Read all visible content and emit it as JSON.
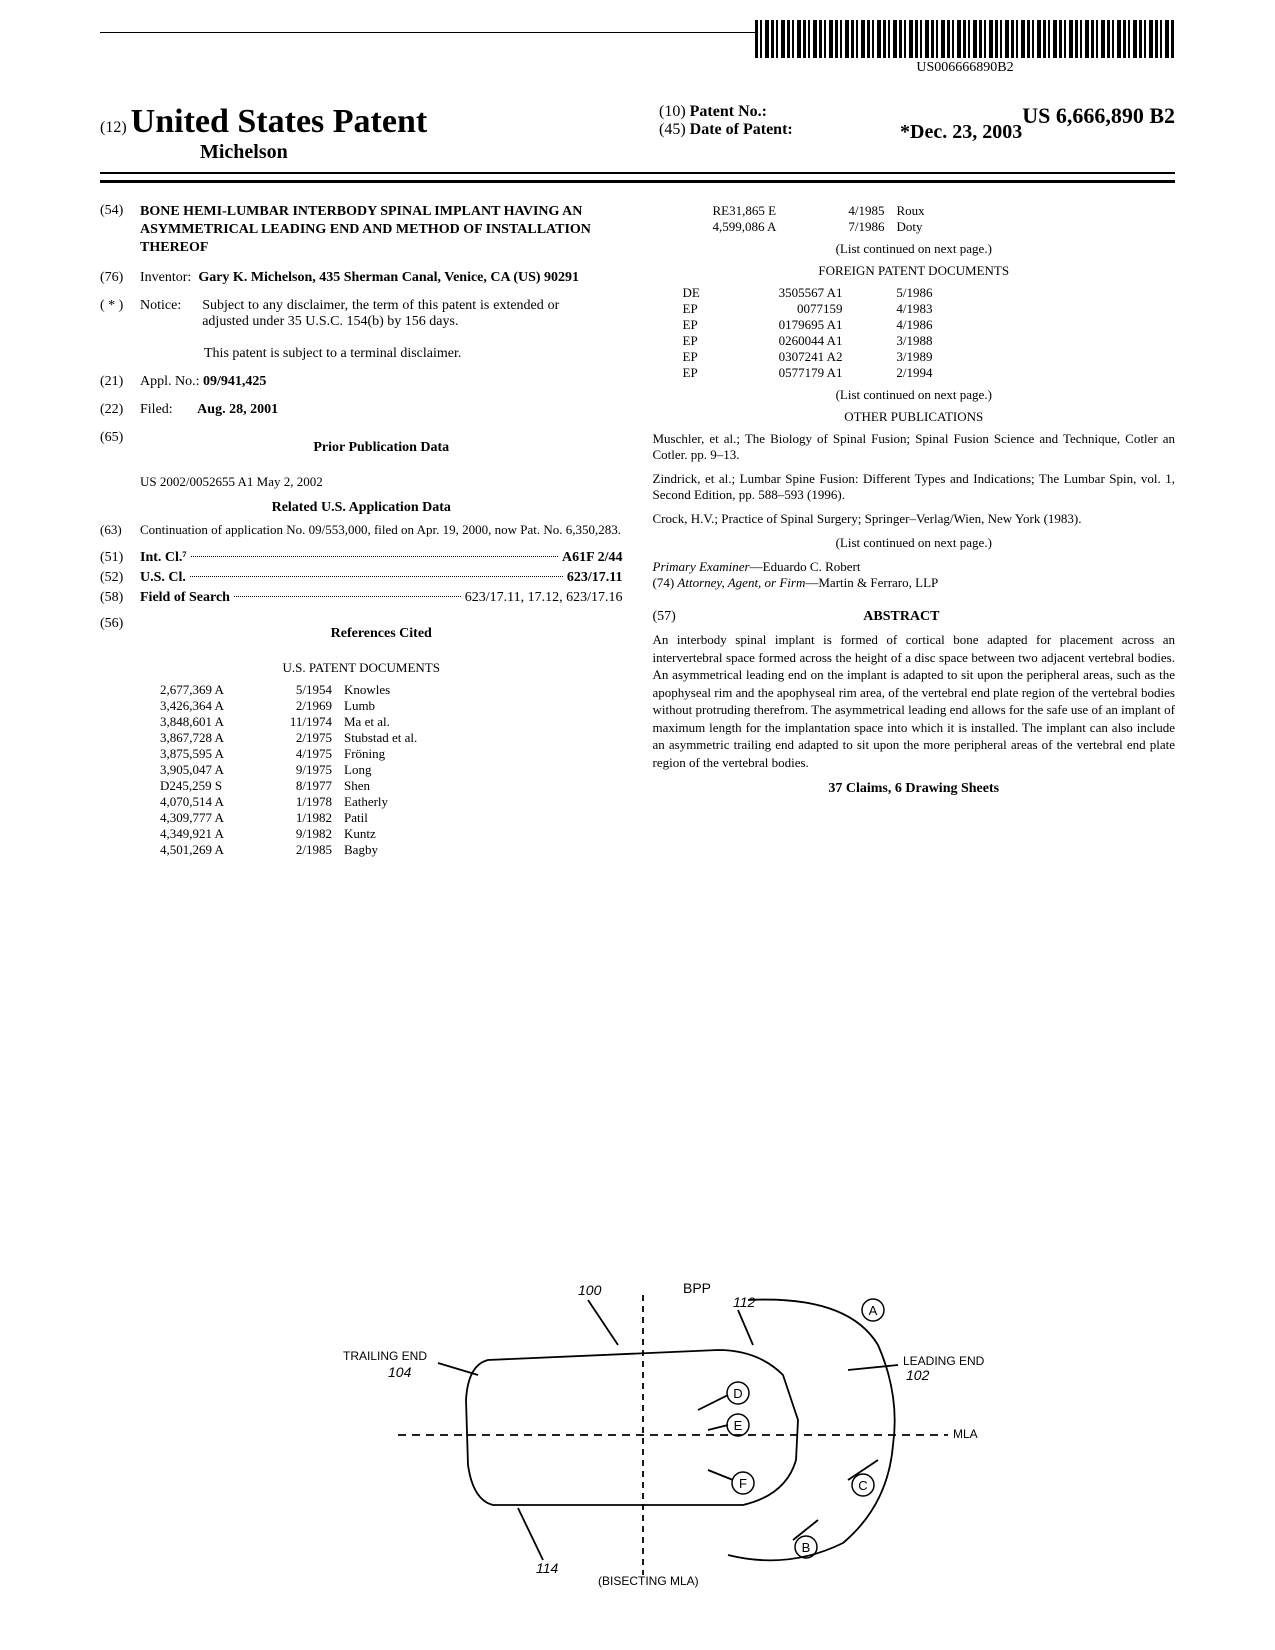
{
  "barcode_text": "US006666890B2",
  "header": {
    "prefix_num": "(12)",
    "title": "United States Patent",
    "inventor_line": "Michelson",
    "patent_no_prefix": "(10)",
    "patent_no_label": "Patent No.:",
    "patent_no": "US 6,666,890 B2",
    "date_prefix": "(45)",
    "date_label": "Date of Patent:",
    "date_value": "*Dec. 23, 2003"
  },
  "left": {
    "s54": {
      "num": "(54)",
      "text": "BONE HEMI-LUMBAR INTERBODY SPINAL IMPLANT HAVING AN ASYMMETRICAL LEADING END AND METHOD OF INSTALLATION THEREOF"
    },
    "s76": {
      "num": "(76)",
      "label": "Inventor:",
      "text": "Gary K. Michelson, 435 Sherman Canal, Venice, CA (US) 90291"
    },
    "notice": {
      "num": "( * )",
      "label": "Notice:",
      "text1": "Subject to any disclaimer, the term of this patent is extended or adjusted under 35 U.S.C. 154(b) by 156 days.",
      "text2": "This patent is subject to a terminal disclaimer."
    },
    "s21": {
      "num": "(21)",
      "label": "Appl. No.:",
      "value": "09/941,425"
    },
    "s22": {
      "num": "(22)",
      "label": "Filed:",
      "value": "Aug. 28, 2001"
    },
    "s65": {
      "num": "(65)",
      "heading": "Prior Publication Data",
      "text": "US 2002/0052655 A1 May 2, 2002"
    },
    "related_heading": "Related U.S. Application Data",
    "s63": {
      "num": "(63)",
      "text": "Continuation of application No. 09/553,000, filed on Apr. 19, 2000, now Pat. No. 6,350,283."
    },
    "s51": {
      "num": "(51)",
      "label": "Int. Cl.⁷",
      "value": "A61F 2/44"
    },
    "s52": {
      "num": "(52)",
      "label": "U.S. Cl.",
      "value": "623/17.11"
    },
    "s58": {
      "num": "(58)",
      "label": "Field of Search",
      "value": "623/17.11, 17.12, 623/17.16"
    },
    "s56": {
      "num": "(56)",
      "heading": "References Cited",
      "subheading": "U.S. PATENT DOCUMENTS"
    },
    "us_patents": [
      {
        "no": "2,677,369 A",
        "date": "5/1954",
        "name": "Knowles"
      },
      {
        "no": "3,426,364 A",
        "date": "2/1969",
        "name": "Lumb"
      },
      {
        "no": "3,848,601 A",
        "date": "11/1974",
        "name": "Ma et al."
      },
      {
        "no": "3,867,728 A",
        "date": "2/1975",
        "name": "Stubstad et al."
      },
      {
        "no": "3,875,595 A",
        "date": "4/1975",
        "name": "Fröning"
      },
      {
        "no": "3,905,047 A",
        "date": "9/1975",
        "name": "Long"
      },
      {
        "no": "D245,259 S",
        "date": "8/1977",
        "name": "Shen"
      },
      {
        "no": "4,070,514 A",
        "date": "1/1978",
        "name": "Eatherly"
      },
      {
        "no": "4,309,777 A",
        "date": "1/1982",
        "name": "Patil"
      },
      {
        "no": "4,349,921 A",
        "date": "9/1982",
        "name": "Kuntz"
      },
      {
        "no": "4,501,269 A",
        "date": "2/1985",
        "name": "Bagby"
      }
    ]
  },
  "right": {
    "us_patents_cont": [
      {
        "no": "RE31,865 E",
        "date": "4/1985",
        "name": "Roux"
      },
      {
        "no": "4,599,086 A",
        "date": "7/1986",
        "name": "Doty"
      }
    ],
    "continued1": "(List continued on next page.)",
    "foreign_heading": "FOREIGN PATENT DOCUMENTS",
    "foreign": [
      {
        "cc": "DE",
        "no": "3505567 A1",
        "date": "5/1986"
      },
      {
        "cc": "EP",
        "no": "0077159",
        "date": "4/1983"
      },
      {
        "cc": "EP",
        "no": "0179695 A1",
        "date": "4/1986"
      },
      {
        "cc": "EP",
        "no": "0260044 A1",
        "date": "3/1988"
      },
      {
        "cc": "EP",
        "no": "0307241 A2",
        "date": "3/1989"
      },
      {
        "cc": "EP",
        "no": "0577179 A1",
        "date": "2/1994"
      }
    ],
    "continued2": "(List continued on next page.)",
    "other_heading": "OTHER PUBLICATIONS",
    "pub1": "Muschler, et al.; The Biology of Spinal Fusion; Spinal Fusion Science and Technique, Cotler an Cotler. pp. 9–13.",
    "pub2": "Zindrick, et al.; Lumbar Spine Fusion: Different Types and Indications; The Lumbar Spin, vol. 1, Second Edition, pp. 588–593 (1996).",
    "pub3": "Crock, H.V.; Practice of Spinal Surgery; Springer–Verlag/Wien, New York (1983).",
    "continued3": "(List continued on next page.)",
    "examiner_label": "Primary Examiner",
    "examiner": "—Eduardo C. Robert",
    "attorney_num": "(74)",
    "attorney_label": "Attorney, Agent, or Firm",
    "attorney": "—Martin & Ferraro, LLP",
    "abstract_num": "(57)",
    "abstract_heading": "ABSTRACT",
    "abstract": "An interbody spinal implant is formed of cortical bone adapted for placement across an intervertebral space formed across the height of a disc space between two adjacent vertebral bodies. An asymmetrical leading end on the implant is adapted to sit upon the peripheral areas, such as the apophyseal rim and the apophyseal rim area, of the vertebral end plate region of the vertebral bodies without protruding therefrom. The asymmetrical leading end allows for the safe use of an implant of maximum length for the implantation space into which it is installed. The implant can also include an asymmetric trailing end adapted to sit upon the more peripheral areas of the vertebral end plate region of the vertebral bodies.",
    "claims": "37 Claims, 6 Drawing Sheets"
  },
  "figure": {
    "labels": {
      "ref100": "100",
      "bpp": "BPP",
      "ref112": "112",
      "a": "A",
      "trailing": "TRAILING END",
      "ref104": "104",
      "leading": "LEADING END",
      "ref102": "102",
      "d": "D",
      "e": "E",
      "mla": "MLA",
      "f": "F",
      "c": "C",
      "b": "B",
      "ref114": "114",
      "bisecting": "(BISECTING MLA)"
    },
    "stroke": "#000000",
    "stroke_width": 1.5
  }
}
